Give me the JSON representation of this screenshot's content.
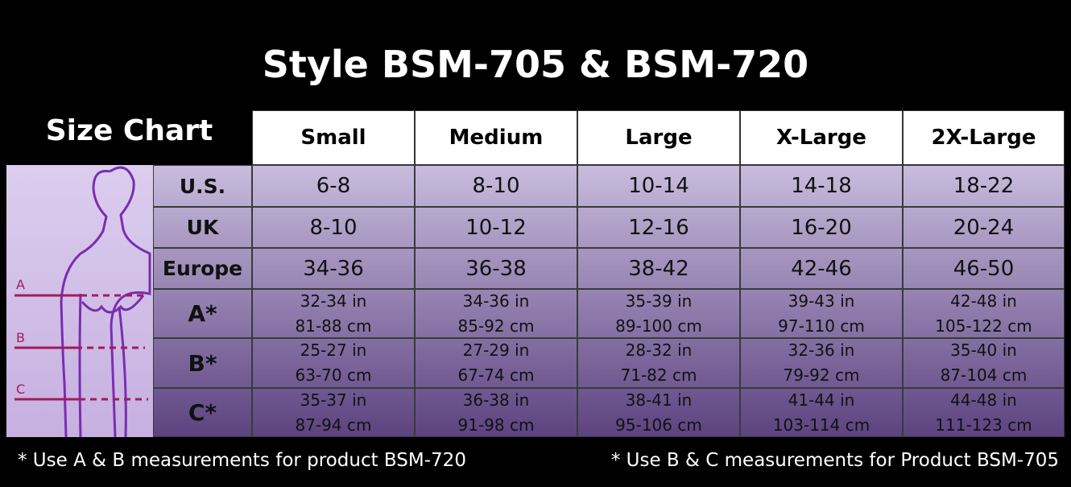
{
  "title": "Style BSM-705 & BSM-720",
  "subtitle": "Size Chart",
  "columns": [
    "Small",
    "Medium",
    "Large",
    "X-Large",
    "2X-Large"
  ],
  "rows": [
    {
      "label": "U.S.",
      "cells": [
        [
          "6-8"
        ],
        [
          "8-10"
        ],
        [
          "10-14"
        ],
        [
          "14-18"
        ],
        [
          "18-22"
        ]
      ]
    },
    {
      "label": "UK",
      "cells": [
        [
          "8-10"
        ],
        [
          "10-12"
        ],
        [
          "12-16"
        ],
        [
          "16-20"
        ],
        [
          "20-24"
        ]
      ]
    },
    {
      "label": "Europe",
      "cells": [
        [
          "34-36"
        ],
        [
          "36-38"
        ],
        [
          "38-42"
        ],
        [
          "42-46"
        ],
        [
          "46-50"
        ]
      ]
    },
    {
      "label": "A*",
      "cells": [
        [
          "32-34 in",
          "81-88 cm"
        ],
        [
          "34-36 in",
          "85-92 cm"
        ],
        [
          "35-39 in",
          "89-100 cm"
        ],
        [
          "39-43 in",
          "97-110 cm"
        ],
        [
          "42-48 in",
          "105-122 cm"
        ]
      ]
    },
    {
      "label": "B*",
      "cells": [
        [
          "25-27 in",
          "63-70 cm"
        ],
        [
          "27-29 in",
          "67-74 cm"
        ],
        [
          "28-32 in",
          "71-82 cm"
        ],
        [
          "32-36 in",
          "79-92 cm"
        ],
        [
          "35-40 in",
          "87-104 cm"
        ]
      ]
    },
    {
      "label": "C*",
      "cells": [
        [
          "35-37 in",
          "87-94 cm"
        ],
        [
          "36-38 in",
          "91-98 cm"
        ],
        [
          "38-41 in",
          "95-106 cm"
        ],
        [
          "41-44 in",
          "103-114 cm"
        ],
        [
          "44-48 in",
          "111-123 cm"
        ]
      ]
    }
  ],
  "figure": {
    "labels": [
      "A",
      "B",
      "C"
    ]
  },
  "notes": [
    "* Use A & B measurements for product BSM-720",
    "* Use B & C measurements for Product BSM-705"
  ]
}
